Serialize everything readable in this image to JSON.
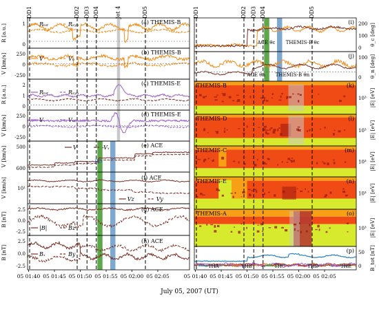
{
  "figure": {
    "xlabel": "July 05, 2007 (UT)",
    "time_ticks": [
      "05 01:40",
      "05 01:45",
      "05 01:50",
      "05 01:55",
      "05 02:00",
      "05 02:05"
    ],
    "top_markers": [
      "DD1",
      "DD2",
      "DD3",
      "DD4",
      "Jet 4",
      "DD5"
    ],
    "colors": {
      "orange": "#f28c1a",
      "purple": "#9d5fc9",
      "brown": "#7a2e23",
      "shade_grey": "#c9c9c9",
      "shade_green": "#5ca84a",
      "shade_blue": "#7fa8cf",
      "spec_red": "#f04a15",
      "spec_orange": "#f7a015",
      "spec_yellow": "#d8ea2d",
      "spec_dark": "#9e1c10",
      "tha": "#2a7fc0",
      "thb": "#e8701a",
      "thc": "#3a9a3a",
      "thd": "#c42b2b",
      "the": "#9a5cc8"
    }
  },
  "chart_data": [
    {
      "panel": "a",
      "type": "line",
      "title": "THEMIS-B",
      "ylabel": "R [a.u.]",
      "yticks": [
        "1",
        "0"
      ],
      "legend": [
        "R_tot",
        "R_syn"
      ]
    },
    {
      "panel": "b",
      "type": "line",
      "title": "THEMIS-B",
      "ylabel": "V [km/s]",
      "yticks": [
        "250",
        "0",
        "-250"
      ],
      "legend": [
        "V",
        "V_n"
      ]
    },
    {
      "panel": "c",
      "type": "line",
      "title": "THEMIS-E",
      "ylabel": "R [a.u.]",
      "yticks": [
        "2",
        "1",
        "0"
      ],
      "legend": [
        "R_tot",
        "R_syn"
      ]
    },
    {
      "panel": "d",
      "type": "line",
      "title": "THEMIS-E",
      "ylabel": "V [km/s]",
      "yticks": [
        "250",
        "0",
        "-250"
      ],
      "legend": [
        "V",
        "V_n"
      ]
    },
    {
      "panel": "e",
      "type": "line",
      "title": "ACE",
      "ylabel": "V [km/s]",
      "yticks": [
        "500",
        "600"
      ],
      "legend": [
        "V",
        "-V_x"
      ],
      "annotation": "RD"
    },
    {
      "panel": "f",
      "type": "line",
      "title": "ACE",
      "ylabel": "V [km/s]",
      "yticks": [
        "10^1"
      ],
      "legend": [
        "V_z",
        "V_y"
      ]
    },
    {
      "panel": "g",
      "type": "line",
      "title": "ACE",
      "ylabel": "B [nT]",
      "yticks": [
        "2.5",
        "0.0",
        "-2.5"
      ],
      "legend": [
        "|B|",
        "B_z"
      ]
    },
    {
      "panel": "h",
      "type": "line",
      "title": "ACE",
      "ylabel": "B [nT]",
      "yticks": [
        "2.5",
        "0.0",
        "-2.5"
      ],
      "legend": [
        "B_x",
        "B_y"
      ]
    },
    {
      "panel": "i",
      "type": "line",
      "ylabel": "θ_c [deg]",
      "yticks": [
        "200",
        "100",
        "0"
      ],
      "legend": [
        "ACE θ_c",
        "THEMIS-B θ_c"
      ]
    },
    {
      "panel": "j",
      "type": "line",
      "ylabel": "θ_n [deg]",
      "yticks": [
        "100",
        "0"
      ],
      "legend": [
        "ACE θ_n",
        "THEMIS-B θ_n"
      ]
    },
    {
      "panel": "k",
      "type": "heatmap",
      "title": "THEMIS-B",
      "ylabel": "|E| [eV]",
      "yticks": [
        "10^3"
      ]
    },
    {
      "panel": "l",
      "type": "heatmap",
      "title": "THEMIS-D",
      "ylabel": "|E| [eV]",
      "yticks": [
        "10^3"
      ]
    },
    {
      "panel": "m",
      "type": "heatmap",
      "title": "THEMIS-C",
      "ylabel": "|E| [eV]",
      "yticks": [
        "10^3"
      ]
    },
    {
      "panel": "n",
      "type": "heatmap",
      "title": "THEMIS-E",
      "ylabel": "|E| [eV]",
      "yticks": [
        "10^3"
      ]
    },
    {
      "panel": "o",
      "type": "heatmap",
      "title": "THEMIS-A",
      "ylabel": "|E| [eV]",
      "yticks": [
        "10^3"
      ]
    },
    {
      "panel": "p",
      "type": "line",
      "ylabel": "B_tot [nT]",
      "yticks": [
        "50",
        "0"
      ],
      "legend": [
        "THA",
        "THB",
        "THC",
        "THD",
        "THE"
      ]
    }
  ]
}
